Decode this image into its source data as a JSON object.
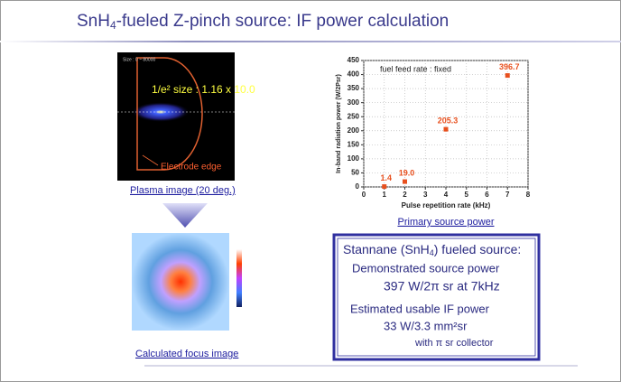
{
  "title": {
    "parts": [
      "SnH",
      "4",
      "-fueled Z-pinch source: IF power calculation"
    ]
  },
  "plasma_image": {
    "scale_text": "Size : 0 ~ 80000",
    "size_text": "1/e² size : 1.16 x 10.0",
    "edge_text": "Electrode edge",
    "caption": "Plasma image (20 deg.)"
  },
  "focus_image": {
    "caption": "Calculated focus image"
  },
  "chart_data": {
    "type": "scatter",
    "x": [
      1,
      2,
      4,
      7
    ],
    "values": [
      1.4,
      19.0,
      205.3,
      396.7
    ],
    "value_labels": [
      "1.4",
      "19.0",
      "205.3",
      "396.7"
    ],
    "color": "#e8501e",
    "xlim": [
      0,
      8
    ],
    "ylim": [
      0,
      450
    ],
    "xticks": [
      0,
      1,
      2,
      3,
      4,
      5,
      6,
      7,
      8
    ],
    "yticks": [
      0,
      50,
      100,
      150,
      200,
      250,
      300,
      350,
      400,
      450
    ],
    "grid": true,
    "xlabel": "Pulse repetition rate (kHz)",
    "ylabel": "In-band radiation power (W/2Psr)",
    "annotation": "fuel feed rate : fixed",
    "caption": "Primary source power"
  },
  "summary_box": {
    "heading_parts": [
      "Stannane (SnH",
      "4",
      ") fueled source:"
    ],
    "lines": [
      "Demonstrated source power",
      "397 W/2π sr at 7kHz",
      "Estimated usable IF power",
      "33 W/3.3 mm²sr",
      "with π sr collector"
    ]
  }
}
